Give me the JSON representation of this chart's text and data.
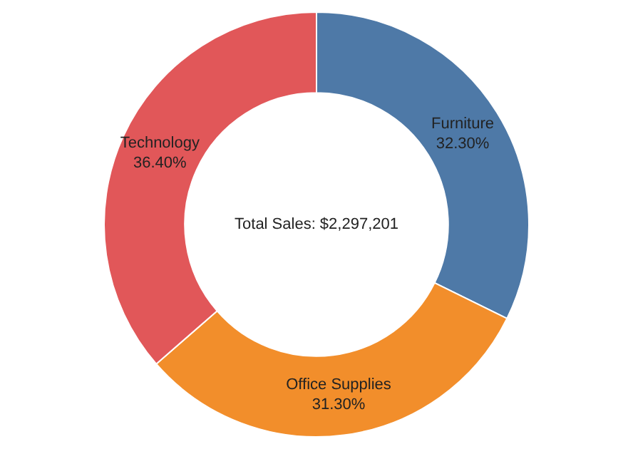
{
  "chart_data": {
    "type": "donut",
    "categories": [
      "Furniture",
      "Office Supplies",
      "Technology"
    ],
    "values": [
      32.3,
      31.3,
      36.4
    ],
    "colors": [
      "#4e79a7",
      "#f28e2b",
      "#e15759"
    ],
    "value_labels": [
      "32.30%",
      "31.30%",
      "36.40%"
    ],
    "annotations": [
      "Total Sales: $2,297,201"
    ],
    "legend": false
  }
}
